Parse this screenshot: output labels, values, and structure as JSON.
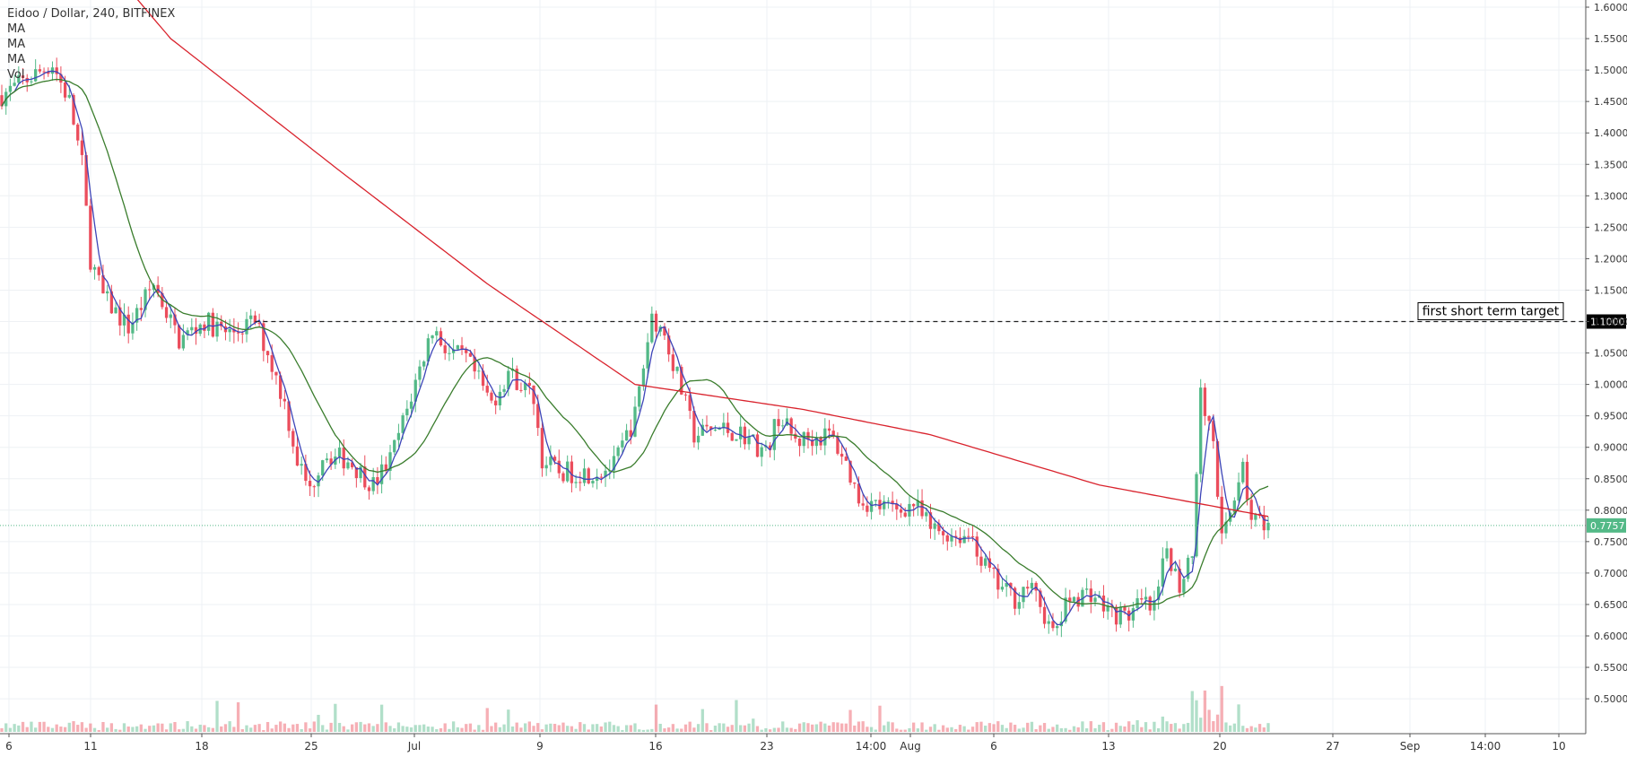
{
  "header": {
    "symbol_line": "Eidoo / Dollar, 240, BITFINEX",
    "indicators": [
      "MA",
      "MA",
      "MA",
      "Vol"
    ]
  },
  "colors": {
    "up": "#53b987",
    "down": "#eb4d5c",
    "ma_fast": "#3d45b8",
    "ma_mid": "#3a7d2d",
    "ma_slow": "#d9232d",
    "target_line": "#222222",
    "last_price": "#53b987",
    "grid": "#eef1f4"
  },
  "chart_data": {
    "type": "candlestick",
    "title": "Eidoo / Dollar, 240, BITFINEX",
    "y_ticks": [
      "1.6000",
      "1.5500",
      "1.5000",
      "1.4500",
      "1.4000",
      "1.3500",
      "1.3000",
      "1.2500",
      "1.2000",
      "1.1500",
      "1.1000",
      "1.0500",
      "1.0000",
      "0.9500",
      "0.9000",
      "0.8500",
      "0.8000",
      "0.7500",
      "0.7000",
      "0.6500",
      "0.6000",
      "0.5500",
      "0.5000"
    ],
    "ylim": [
      0.47,
      1.6
    ],
    "x_ticks": [
      "6",
      "11",
      "18",
      "25",
      "Jul",
      "9",
      "16",
      "23",
      "14:00",
      "Aug",
      "6",
      "13",
      "20",
      "27",
      "Sep",
      "14:00",
      "10"
    ],
    "annotation": {
      "text": "first short term target",
      "price": 1.1,
      "label": "1.1000"
    },
    "last_price": {
      "value": 0.7757,
      "label": "0.7757"
    },
    "price_path": [
      [
        0,
        1.46
      ],
      [
        12,
        1.51
      ],
      [
        16,
        1.45
      ],
      [
        19,
        1.35
      ],
      [
        21,
        1.2
      ],
      [
        24,
        1.14
      ],
      [
        30,
        1.09
      ],
      [
        36,
        1.16
      ],
      [
        42,
        1.07
      ],
      [
        48,
        1.1
      ],
      [
        54,
        1.08
      ],
      [
        60,
        1.1
      ],
      [
        63,
        1.05
      ],
      [
        67,
        0.97
      ],
      [
        70,
        0.88
      ],
      [
        73,
        0.83
      ],
      [
        76,
        0.89
      ],
      [
        82,
        0.88
      ],
      [
        88,
        0.84
      ],
      [
        92,
        0.88
      ],
      [
        96,
        0.96
      ],
      [
        102,
        1.09
      ],
      [
        106,
        1.05
      ],
      [
        110,
        1.04
      ],
      [
        116,
        0.97
      ],
      [
        120,
        1.02
      ],
      [
        126,
        0.98
      ],
      [
        128,
        0.88
      ],
      [
        132,
        0.86
      ],
      [
        140,
        0.86
      ],
      [
        145,
        0.87
      ],
      [
        150,
        0.95
      ],
      [
        154,
        1.11
      ],
      [
        157,
        1.08
      ],
      [
        161,
        0.99
      ],
      [
        164,
        0.92
      ],
      [
        170,
        0.93
      ],
      [
        176,
        0.92
      ],
      [
        181,
        0.89
      ],
      [
        184,
        0.95
      ],
      [
        188,
        0.91
      ],
      [
        196,
        0.92
      ],
      [
        199,
        0.89
      ],
      [
        203,
        0.82
      ],
      [
        206,
        0.81
      ],
      [
        212,
        0.8
      ],
      [
        216,
        0.81
      ],
      [
        220,
        0.77
      ],
      [
        226,
        0.76
      ],
      [
        230,
        0.76
      ],
      [
        232,
        0.72
      ],
      [
        236,
        0.68
      ],
      [
        240,
        0.66
      ],
      [
        243,
        0.68
      ],
      [
        246,
        0.65
      ],
      [
        249,
        0.6
      ],
      [
        253,
        0.66
      ],
      [
        258,
        0.67
      ],
      [
        262,
        0.64
      ],
      [
        266,
        0.63
      ],
      [
        270,
        0.65
      ],
      [
        273,
        0.64
      ],
      [
        276,
        0.74
      ],
      [
        279,
        0.68
      ],
      [
        282,
        0.74
      ],
      [
        284,
        0.98
      ],
      [
        287,
        0.92
      ],
      [
        289,
        0.75
      ],
      [
        292,
        0.83
      ],
      [
        294,
        0.86
      ],
      [
        296,
        0.79
      ],
      [
        298,
        0.78
      ],
      [
        300,
        0.78
      ]
    ],
    "ma_slow_path": [
      [
        16,
        1.74
      ],
      [
        40,
        1.55
      ],
      [
        80,
        1.34
      ],
      [
        115,
        1.16
      ],
      [
        150,
        1.0
      ],
      [
        190,
        0.96
      ],
      [
        220,
        0.92
      ],
      [
        260,
        0.84
      ],
      [
        300,
        0.79
      ]
    ]
  }
}
